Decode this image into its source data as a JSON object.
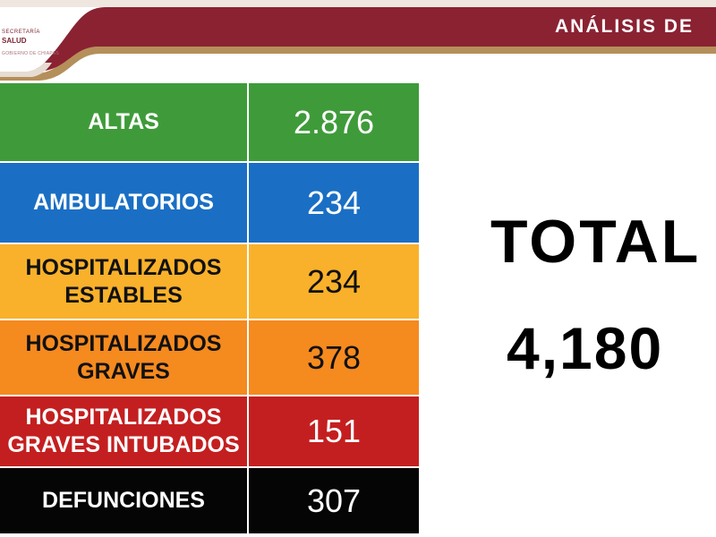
{
  "header": {
    "logo_line1": "SECRETARÍA",
    "logo_line2": "SALUD",
    "logo_line3": "GOBIERNO DE CHIAPAS",
    "title": "ANÁLISIS DE"
  },
  "rows": [
    {
      "label_lines": [
        "ALTAS"
      ],
      "value": "2.876",
      "bg": "#3f9b3a",
      "label_color": "#ffffff",
      "value_color": "#ffffff"
    },
    {
      "label_lines": [
        "AMBULATORIOS"
      ],
      "value": "234",
      "bg": "#1a6fc4",
      "label_color": "#ffffff",
      "value_color": "#ffffff"
    },
    {
      "label_lines": [
        "HOSPITALIZADOS",
        "ESTABLES"
      ],
      "value": "234",
      "bg": "#f9b12b",
      "label_color": "#111111",
      "value_color": "#111111"
    },
    {
      "label_lines": [
        "HOSPITALIZADOS",
        "GRAVES"
      ],
      "value": "378",
      "bg": "#f58a1f",
      "label_color": "#111111",
      "value_color": "#111111"
    },
    {
      "label_lines": [
        "HOSPITALIZADOS",
        "GRAVES INTUBADOS"
      ],
      "value": "151",
      "bg": "#c41f20",
      "label_color": "#ffffff",
      "value_color": "#ffffff"
    },
    {
      "label_lines": [
        "DEFUNCIONES"
      ],
      "value": "307",
      "bg": "#050505",
      "label_color": "#ffffff",
      "value_color": "#ffffff"
    }
  ],
  "total": {
    "label": "TOTAL",
    "value": "4,180"
  },
  "colors": {
    "header_maroon": "#8a2232",
    "header_gold": "#b58f5a",
    "header_band_light": "#e6dcd2"
  }
}
